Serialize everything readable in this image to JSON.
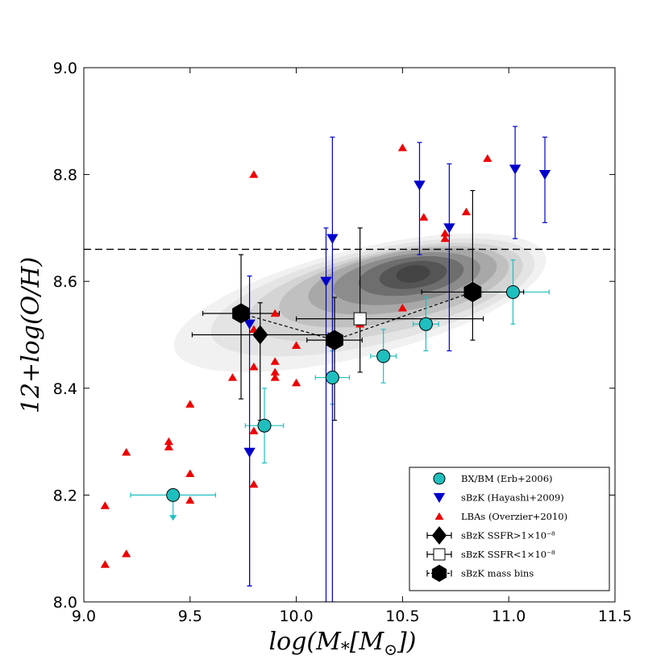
{
  "chart_data": {
    "type": "scatter",
    "xlabel": "log(M_*[M_⊙])",
    "ylabel": "12+log(O/H)",
    "xlim": [
      9.0,
      11.5
    ],
    "ylim": [
      8.0,
      9.0
    ],
    "xticks": [
      "9.0",
      "9.5",
      "10.0",
      "10.5",
      "11.0",
      "11.5"
    ],
    "yticks": [
      "8.0",
      "8.2",
      "8.4",
      "8.6",
      "8.8",
      "9.0"
    ],
    "solar_line": 8.66,
    "background": "grey contour density (SDSS local galaxies)",
    "series": [
      {
        "name": "BX/BM (Erb+2006)",
        "marker": "circle",
        "color": "#1fbfbf",
        "points": [
          {
            "x": 9.42,
            "y": 8.2,
            "xerr": 0.2,
            "upper_limit": true
          },
          {
            "x": 9.85,
            "y": 8.33,
            "xerr": 0.09,
            "yerr": 0.07
          },
          {
            "x": 10.17,
            "y": 8.42,
            "xerr": 0.08,
            "yerr": 0.05
          },
          {
            "x": 10.41,
            "y": 8.46,
            "xerr": 0.06,
            "yerr": 0.05
          },
          {
            "x": 10.61,
            "y": 8.52,
            "xerr": 0.06,
            "yerr": 0.05
          },
          {
            "x": 11.02,
            "y": 8.58,
            "xerr": 0.17,
            "yerr": 0.06
          }
        ]
      },
      {
        "name": "sBzK (Hayashi+2009)",
        "marker": "triangle-down",
        "color": "#0000cc",
        "points": [
          {
            "x": 9.78,
            "y": 8.28,
            "yerr_lo": 0.25,
            "yerr_hi": 0.0
          },
          {
            "x": 9.78,
            "y": 8.52,
            "yerr_lo": 0.49,
            "yerr_hi": 0.09
          },
          {
            "x": 10.14,
            "y": 8.6,
            "yerr_lo": 0.6,
            "yerr_hi": 0.1
          },
          {
            "x": 10.17,
            "y": 8.68,
            "yerr_lo": 0.68,
            "yerr_hi": 0.19
          },
          {
            "x": 10.58,
            "y": 8.78,
            "yerr_lo": 0.13,
            "yerr_hi": 0.08
          },
          {
            "x": 10.72,
            "y": 8.7,
            "yerr_lo": 0.23,
            "yerr_hi": 0.12
          },
          {
            "x": 11.03,
            "y": 8.81,
            "yerr_lo": 0.13,
            "yerr_hi": 0.08
          },
          {
            "x": 11.17,
            "y": 8.8,
            "yerr_lo": 0.09,
            "yerr_hi": 0.07
          }
        ]
      },
      {
        "name": "LBAs (Overzier+2010)",
        "marker": "triangle-up",
        "color": "#ee0000",
        "points": [
          {
            "x": 9.1,
            "y": 8.07
          },
          {
            "x": 9.1,
            "y": 8.18
          },
          {
            "x": 9.2,
            "y": 8.09
          },
          {
            "x": 9.2,
            "y": 8.28
          },
          {
            "x": 9.4,
            "y": 8.29
          },
          {
            "x": 9.4,
            "y": 8.3
          },
          {
            "x": 9.5,
            "y": 8.19
          },
          {
            "x": 9.5,
            "y": 8.24
          },
          {
            "x": 9.5,
            "y": 8.37
          },
          {
            "x": 9.7,
            "y": 8.42
          },
          {
            "x": 9.8,
            "y": 8.22
          },
          {
            "x": 9.8,
            "y": 8.32
          },
          {
            "x": 9.8,
            "y": 8.44
          },
          {
            "x": 9.8,
            "y": 8.51
          },
          {
            "x": 9.8,
            "y": 8.8
          },
          {
            "x": 9.9,
            "y": 8.42
          },
          {
            "x": 9.9,
            "y": 8.43
          },
          {
            "x": 9.9,
            "y": 8.45
          },
          {
            "x": 9.9,
            "y": 8.54
          },
          {
            "x": 10.0,
            "y": 8.41
          },
          {
            "x": 10.0,
            "y": 8.48
          },
          {
            "x": 10.3,
            "y": 8.52
          },
          {
            "x": 10.5,
            "y": 8.55
          },
          {
            "x": 10.5,
            "y": 8.85
          },
          {
            "x": 10.6,
            "y": 8.72
          },
          {
            "x": 10.7,
            "y": 8.68
          },
          {
            "x": 10.7,
            "y": 8.69
          },
          {
            "x": 10.8,
            "y": 8.73
          },
          {
            "x": 10.9,
            "y": 8.83
          }
        ]
      },
      {
        "name": "sBzK SSFR>1×10⁻⁸",
        "marker": "diamond",
        "color": "#000000",
        "points": [
          {
            "x": 9.83,
            "y": 8.5,
            "xerr": 0.32,
            "yerr_lo": 0.16,
            "yerr_hi": 0.06
          }
        ]
      },
      {
        "name": "sBzK SSFR<1×10⁻⁸",
        "marker": "square-open",
        "color": "#000000",
        "points": [
          {
            "x": 10.3,
            "y": 8.53,
            "xerr_lo": 0.3,
            "xerr_hi": 0.58,
            "yerr_lo": 0.1,
            "yerr_hi": 0.17
          }
        ]
      },
      {
        "name": "sBzK  mass bins",
        "marker": "hexagon",
        "color": "#000000",
        "points": [
          {
            "x": 9.74,
            "y": 8.54,
            "xerr": 0.18,
            "yerr_lo": 0.16,
            "yerr_hi": 0.11
          },
          {
            "x": 10.18,
            "y": 8.49,
            "xerr": 0.13,
            "yerr_lo": 0.15,
            "yerr_hi": 0.08
          },
          {
            "x": 10.83,
            "y": 8.58,
            "xerr": 0.24,
            "yerr_lo": 0.09,
            "yerr_hi": 0.19
          }
        ]
      }
    ],
    "legend": {
      "position": "lower-right",
      "entries": [
        "BX/BM (Erb+2006)",
        "sBzK (Hayashi+2009)",
        "LBAs (Overzier+2010)",
        "sBzK SSFR>1×10⁻⁸",
        "sBzK SSFR<1×10⁻⁸",
        "sBzK  mass bins"
      ]
    }
  }
}
